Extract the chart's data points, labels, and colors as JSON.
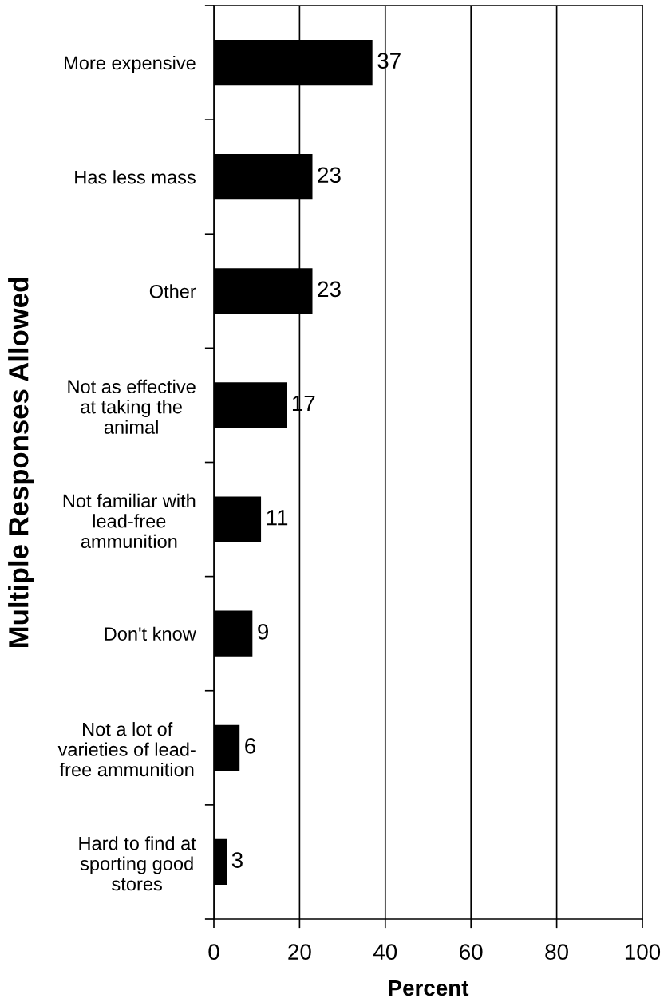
{
  "chart_data": {
    "type": "bar",
    "orientation": "horizontal",
    "categories": [
      "More expensive",
      "Has less mass",
      "Other",
      "Not as effective\nat taking the\nanimal",
      "Not familiar with\nlead-free\nammunition",
      "Don't know",
      "Not a lot of\nvarieties of lead-\nfree ammunition",
      "Hard to find at\nsporting good\nstores"
    ],
    "values": [
      37,
      23,
      23,
      17,
      11,
      9,
      6,
      3
    ],
    "color": "#000000",
    "xlabel": "Percent",
    "ylabel": "Multiple Responses Allowed",
    "xlim": [
      0,
      100
    ],
    "xticks": [
      0,
      20,
      40,
      60,
      80,
      100
    ],
    "grid": "x",
    "data_labels": true
  }
}
